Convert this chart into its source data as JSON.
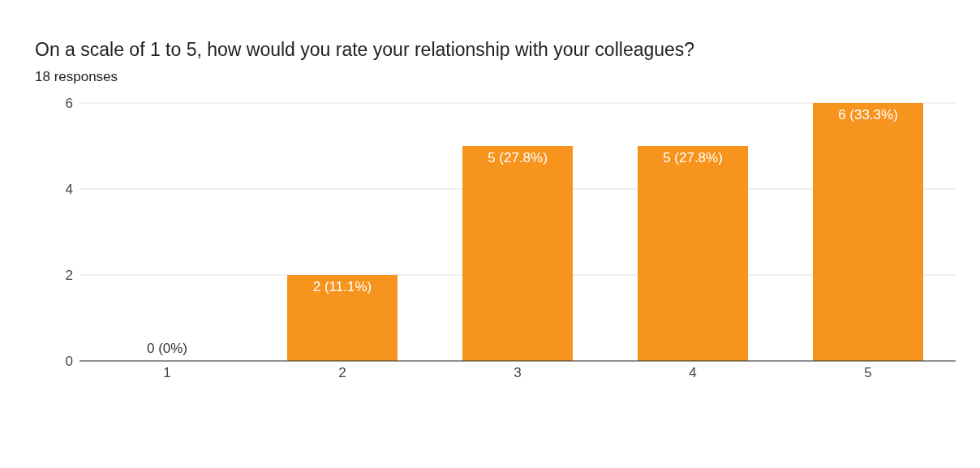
{
  "chart_data": {
    "type": "bar",
    "title": "On a scale of 1 to 5, how would you rate your relationship with your colleagues?",
    "subtitle": "18 responses",
    "categories": [
      "1",
      "2",
      "3",
      "4",
      "5"
    ],
    "values": [
      0,
      2,
      5,
      5,
      6
    ],
    "value_labels": [
      "0 (0%)",
      "2 (11.1%)",
      "5 (27.8%)",
      "5 (27.8%)",
      "6 (33.3%)"
    ],
    "color": "#f7941d",
    "ylim": [
      0,
      6
    ],
    "yticks": [
      0,
      2,
      4,
      6
    ],
    "grid": "y"
  }
}
